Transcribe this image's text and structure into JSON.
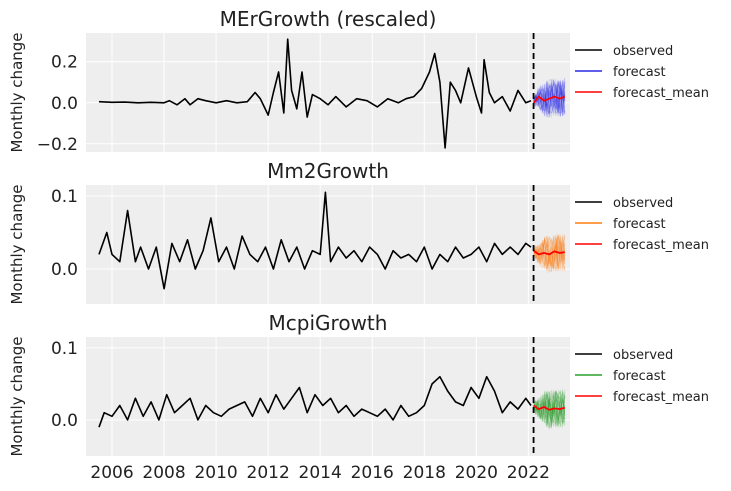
{
  "chart_data": [
    {
      "type": "line",
      "title": "MErGrowth (rescaled)",
      "ylabel": "Monthly change",
      "xlim": [
        2005.0,
        2023.6
      ],
      "ylim": [
        -0.24,
        0.34
      ],
      "yticks": [
        -0.2,
        0.0,
        0.2
      ],
      "ytick_labels": [
        "−0.2",
        "0.0",
        "0.2"
      ],
      "grid": true,
      "legend_position": "outside-right",
      "legend": [
        "observed",
        "forecast",
        "forecast_mean"
      ],
      "forecast_start": 2022.2,
      "forecast_color": "#2a2ae6",
      "series": [
        {
          "name": "observed",
          "color": "#000000",
          "x": [
            2005.5,
            2006.0,
            2006.5,
            2007.0,
            2007.5,
            2008.0,
            2008.2,
            2008.5,
            2008.8,
            2009.0,
            2009.3,
            2009.6,
            2010.0,
            2010.4,
            2010.8,
            2011.2,
            2011.5,
            2011.7,
            2012.0,
            2012.2,
            2012.4,
            2012.6,
            2012.75,
            2012.9,
            2013.1,
            2013.3,
            2013.5,
            2013.7,
            2014.0,
            2014.3,
            2014.6,
            2015.0,
            2015.4,
            2015.8,
            2016.2,
            2016.6,
            2017.0,
            2017.3,
            2017.6,
            2017.9,
            2018.2,
            2018.4,
            2018.6,
            2018.8,
            2019.0,
            2019.2,
            2019.4,
            2019.7,
            2020.0,
            2020.2,
            2020.3,
            2020.5,
            2020.7,
            2021.0,
            2021.3,
            2021.6,
            2021.9,
            2022.1
          ],
          "y": [
            0.005,
            0.002,
            0.003,
            0.0,
            0.002,
            0.0,
            0.01,
            -0.01,
            0.02,
            -0.01,
            0.02,
            0.01,
            0.0,
            0.01,
            0.0,
            0.005,
            0.05,
            0.02,
            -0.06,
            0.05,
            0.15,
            -0.05,
            0.31,
            0.06,
            -0.03,
            0.15,
            -0.07,
            0.04,
            0.02,
            -0.01,
            0.03,
            -0.02,
            0.02,
            0.01,
            -0.02,
            0.02,
            0.0,
            0.02,
            0.03,
            0.07,
            0.15,
            0.24,
            0.1,
            -0.22,
            0.1,
            0.06,
            0.0,
            0.17,
            0.03,
            -0.05,
            0.21,
            0.05,
            0.0,
            0.03,
            -0.04,
            0.06,
            0.0,
            0.01
          ]
        },
        {
          "name": "forecast_mean",
          "color": "#ff0000",
          "x": [
            2022.2,
            2022.4,
            2022.6,
            2022.8,
            2023.0,
            2023.2,
            2023.4
          ],
          "y": [
            0.0,
            0.03,
            0.01,
            0.02,
            0.03,
            0.02,
            0.03
          ]
        }
      ]
    },
    {
      "type": "line",
      "title": "Mm2Growth",
      "ylabel": "Monthly change",
      "xlim": [
        2005.0,
        2023.6
      ],
      "ylim": [
        -0.048,
        0.115
      ],
      "yticks": [
        0.0,
        0.1
      ],
      "ytick_labels": [
        "0.0",
        "0.1"
      ],
      "grid": true,
      "legend_position": "outside-right",
      "legend": [
        "observed",
        "forecast",
        "forecast_mean"
      ],
      "forecast_start": 2022.2,
      "forecast_color": "#ff7f0e",
      "series": [
        {
          "name": "observed",
          "color": "#000000",
          "x": [
            2005.5,
            2005.8,
            2006.0,
            2006.3,
            2006.6,
            2006.9,
            2007.1,
            2007.4,
            2007.7,
            2008.0,
            2008.3,
            2008.6,
            2008.9,
            2009.2,
            2009.5,
            2009.8,
            2010.1,
            2010.4,
            2010.7,
            2011.0,
            2011.3,
            2011.6,
            2011.9,
            2012.2,
            2012.5,
            2012.8,
            2013.1,
            2013.4,
            2013.7,
            2014.0,
            2014.2,
            2014.4,
            2014.7,
            2015.0,
            2015.3,
            2015.6,
            2015.9,
            2016.2,
            2016.5,
            2016.8,
            2017.1,
            2017.4,
            2017.7,
            2018.0,
            2018.3,
            2018.6,
            2018.9,
            2019.2,
            2019.5,
            2019.8,
            2020.1,
            2020.4,
            2020.7,
            2021.0,
            2021.3,
            2021.6,
            2021.9,
            2022.1
          ],
          "y": [
            0.02,
            0.05,
            0.02,
            0.01,
            0.08,
            0.01,
            0.03,
            0.0,
            0.03,
            -0.027,
            0.035,
            0.01,
            0.04,
            0.0,
            0.025,
            0.07,
            0.01,
            0.03,
            0.0,
            0.045,
            0.02,
            0.01,
            0.03,
            0.0,
            0.04,
            0.01,
            0.03,
            0.0,
            0.025,
            0.02,
            0.105,
            0.01,
            0.03,
            0.015,
            0.025,
            0.01,
            0.03,
            0.02,
            0.0,
            0.025,
            0.015,
            0.02,
            0.01,
            0.03,
            0.0,
            0.02,
            0.01,
            0.03,
            0.015,
            0.02,
            0.03,
            0.01,
            0.035,
            0.02,
            0.03,
            0.02,
            0.035,
            0.03
          ]
        },
        {
          "name": "forecast_mean",
          "color": "#ff0000",
          "x": [
            2022.2,
            2022.4,
            2022.6,
            2022.8,
            2023.0,
            2023.2,
            2023.4
          ],
          "y": [
            0.025,
            0.02,
            0.022,
            0.02,
            0.024,
            0.022,
            0.023
          ]
        }
      ]
    },
    {
      "type": "line",
      "title": "McpiGrowth",
      "ylabel": "Monthly change",
      "xlim": [
        2005.0,
        2023.6
      ],
      "ylim": [
        -0.05,
        0.115
      ],
      "yticks": [
        0.0,
        0.1
      ],
      "ytick_labels": [
        "0.0",
        "0.1"
      ],
      "xticks": [
        2006,
        2008,
        2010,
        2012,
        2014,
        2016,
        2018,
        2020,
        2022
      ],
      "xtick_labels": [
        "2006",
        "2008",
        "2010",
        "2012",
        "2014",
        "2016",
        "2018",
        "2020",
        "2022"
      ],
      "grid": true,
      "legend_position": "outside-right",
      "legend": [
        "observed",
        "forecast",
        "forecast_mean"
      ],
      "forecast_start": 2022.2,
      "forecast_color": "#2ca02c",
      "series": [
        {
          "name": "observed",
          "color": "#000000",
          "x": [
            2005.5,
            2005.7,
            2006.0,
            2006.3,
            2006.6,
            2006.9,
            2007.2,
            2007.5,
            2007.8,
            2008.1,
            2008.4,
            2008.7,
            2009.0,
            2009.3,
            2009.6,
            2009.9,
            2010.2,
            2010.5,
            2010.8,
            2011.1,
            2011.4,
            2011.7,
            2012.0,
            2012.3,
            2012.6,
            2012.9,
            2013.2,
            2013.5,
            2013.8,
            2014.1,
            2014.4,
            2014.7,
            2015.0,
            2015.3,
            2015.6,
            2015.9,
            2016.2,
            2016.5,
            2016.8,
            2017.1,
            2017.4,
            2017.7,
            2018.0,
            2018.3,
            2018.6,
            2018.9,
            2019.2,
            2019.5,
            2019.8,
            2020.1,
            2020.4,
            2020.7,
            2021.0,
            2021.3,
            2021.6,
            2021.9,
            2022.1
          ],
          "y": [
            -0.01,
            0.01,
            0.005,
            0.02,
            0.0,
            0.03,
            0.005,
            0.025,
            0.0,
            0.035,
            0.01,
            0.02,
            0.03,
            0.0,
            0.02,
            0.01,
            0.005,
            0.015,
            0.02,
            0.025,
            0.005,
            0.03,
            0.01,
            0.035,
            0.015,
            0.03,
            0.045,
            0.01,
            0.035,
            0.02,
            0.03,
            0.01,
            0.02,
            0.005,
            0.015,
            0.01,
            0.005,
            0.015,
            0.0,
            0.02,
            0.005,
            0.01,
            0.02,
            0.05,
            0.06,
            0.04,
            0.025,
            0.02,
            0.045,
            0.03,
            0.06,
            0.04,
            0.01,
            0.025,
            0.015,
            0.03,
            0.02
          ]
        },
        {
          "name": "forecast_mean",
          "color": "#ff0000",
          "x": [
            2022.2,
            2022.4,
            2022.6,
            2022.8,
            2023.0,
            2023.2,
            2023.4
          ],
          "y": [
            0.02,
            0.015,
            0.018,
            0.014,
            0.016,
            0.015,
            0.017
          ]
        }
      ]
    }
  ]
}
